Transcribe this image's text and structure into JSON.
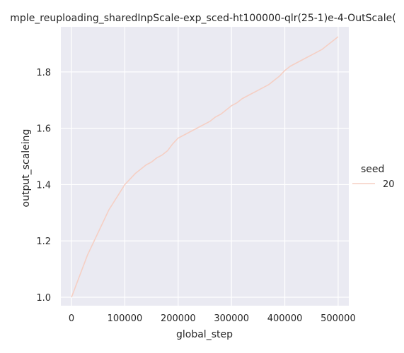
{
  "chart_data": {
    "type": "line",
    "title": "mple_reuploading_sharedInpScale-exp_sced-ht100000-qlr(25-1)e-4-OutScale(",
    "xlabel": "global_step",
    "ylabel": "output_scaleing",
    "xlim": [
      -20000,
      520000
    ],
    "ylim": [
      0.97,
      1.96
    ],
    "xticks": [
      0,
      100000,
      200000,
      300000,
      400000,
      500000
    ],
    "xtick_labels": [
      "0",
      "100000",
      "200000",
      "300000",
      "400000",
      "500000"
    ],
    "yticks": [
      1.0,
      1.2,
      1.4,
      1.6,
      1.8
    ],
    "ytick_labels": [
      "1.0",
      "1.2",
      "1.4",
      "1.6",
      "1.8"
    ],
    "grid": true,
    "legend": {
      "title": "seed",
      "placement": "right",
      "entries": [
        "20"
      ]
    },
    "series": [
      {
        "name": "20",
        "color": "#f5cfc4",
        "x": [
          0,
          10000,
          20000,
          30000,
          40000,
          50000,
          60000,
          70000,
          80000,
          90000,
          100000,
          110000,
          120000,
          130000,
          140000,
          150000,
          160000,
          170000,
          180000,
          190000,
          200000,
          210000,
          220000,
          230000,
          240000,
          250000,
          260000,
          270000,
          280000,
          290000,
          300000,
          310000,
          320000,
          330000,
          340000,
          350000,
          360000,
          370000,
          380000,
          390000,
          400000,
          410000,
          420000,
          430000,
          440000,
          450000,
          460000,
          470000,
          480000,
          490000,
          500000
        ],
        "y": [
          1.0,
          1.05,
          1.1,
          1.15,
          1.19,
          1.23,
          1.27,
          1.31,
          1.34,
          1.37,
          1.4,
          1.42,
          1.44,
          1.455,
          1.47,
          1.48,
          1.495,
          1.505,
          1.52,
          1.545,
          1.565,
          1.575,
          1.585,
          1.595,
          1.605,
          1.615,
          1.625,
          1.64,
          1.65,
          1.665,
          1.68,
          1.69,
          1.705,
          1.715,
          1.725,
          1.735,
          1.745,
          1.755,
          1.77,
          1.785,
          1.805,
          1.82,
          1.83,
          1.84,
          1.85,
          1.86,
          1.87,
          1.88,
          1.895,
          1.91,
          1.925
        ]
      }
    ]
  }
}
